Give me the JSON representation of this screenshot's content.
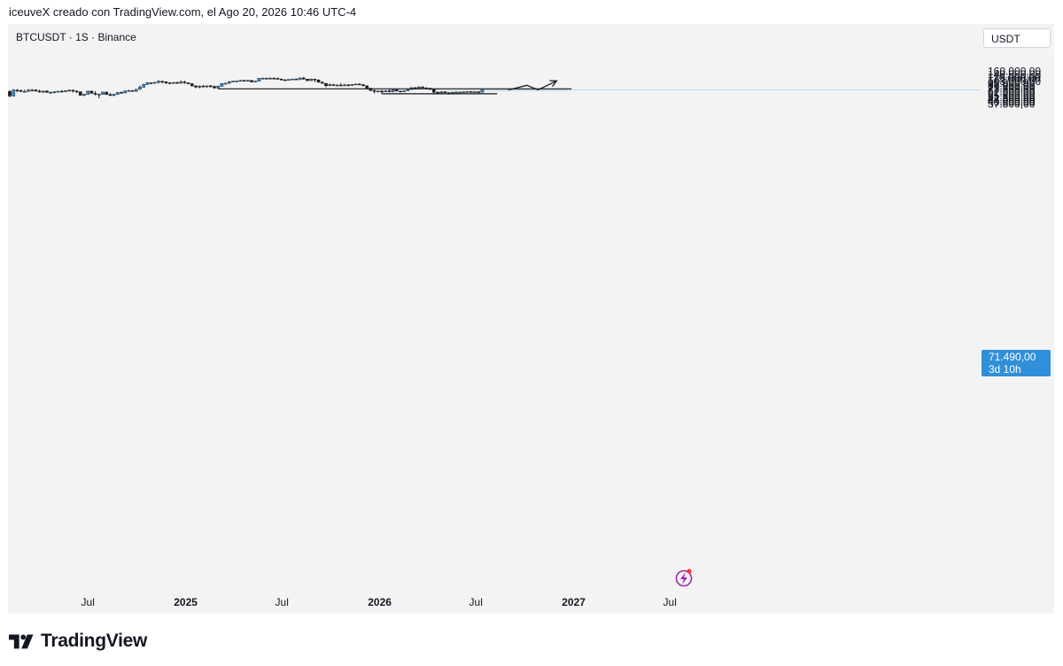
{
  "header": {
    "text": "iceuveX creado con TradingView.com, el Ago 20, 2026 10:46 UTC-4"
  },
  "symbol": {
    "label": "BTCUSDT · 1S · Binance"
  },
  "currency_badge": "USDT",
  "last_price": {
    "value": "71.490,00",
    "countdown": "3d 10h",
    "color": "#2f8fd8"
  },
  "footer": {
    "logo_text": "TradingView"
  },
  "colors": {
    "up": "#2f8fd8",
    "down": "#1e1e1e",
    "background": "#f3f3f3",
    "zone": "#e4e4e4"
  },
  "icons": {
    "lightning": "lightning-alert-icon"
  },
  "chart_data": {
    "type": "candlestick",
    "scale": "log",
    "price_ticks": [
      160000,
      140000,
      125000,
      115000,
      103000,
      95000,
      87000,
      79500,
      73500,
      67500,
      61500,
      55500,
      51500,
      47500,
      44000,
      40800,
      37800
    ],
    "price_tick_labels": [
      "160.000,00",
      "140.000,00",
      "125.000,00",
      "115.000,00",
      "103.000,00",
      "95.000,00",
      "87.000,00",
      "79.500,00",
      "73.500,00",
      "67.500,00",
      "61.500,00",
      "55.500,00",
      "51.500,00",
      "47.500,00",
      "44.000,00",
      "40.800,00",
      "37.800,00"
    ],
    "time_ticks": [
      {
        "label": "Jul",
        "date": "2024-07-01",
        "bold": false
      },
      {
        "label": "2025",
        "date": "2025-01-01",
        "bold": true
      },
      {
        "label": "Jul",
        "date": "2025-07-01",
        "bold": false
      },
      {
        "label": "2026",
        "date": "2026-01-01",
        "bold": true
      },
      {
        "label": "Jul",
        "date": "2026-07-01",
        "bold": false
      },
      {
        "label": "2027",
        "date": "2027-01-01",
        "bold": true
      },
      {
        "label": "Jul",
        "date": "2027-07-01",
        "bold": false
      }
    ],
    "candles": [
      [
        66500,
        70500,
        51000,
        54500
      ],
      [
        54500,
        73500,
        53000,
        70500
      ],
      [
        70500,
        73500,
        64000,
        69500
      ],
      [
        69500,
        72000,
        64000,
        66500
      ],
      [
        66500,
        72000,
        64000,
        66500
      ],
      [
        66500,
        73500,
        65000,
        70500
      ],
      [
        70500,
        74000,
        66000,
        71000
      ],
      [
        71000,
        72500,
        66000,
        67500
      ],
      [
        67500,
        71500,
        63000,
        64500
      ],
      [
        64500,
        69000,
        62000,
        67500
      ],
      [
        67500,
        70000,
        63000,
        63500
      ],
      [
        63500,
        66500,
        60000,
        64000
      ],
      [
        64000,
        67000,
        61000,
        65500
      ],
      [
        65500,
        68000,
        63500,
        67000
      ],
      [
        67000,
        70500,
        65000,
        66500
      ],
      [
        66500,
        69000,
        64000,
        69000
      ],
      [
        69000,
        72500,
        66500,
        70000
      ],
      [
        70000,
        72000,
        63000,
        67500
      ],
      [
        67500,
        69000,
        62000,
        65500
      ],
      [
        65500,
        67000,
        55500,
        56000
      ],
      [
        56000,
        60000,
        54000,
        58500
      ],
      [
        58500,
        68500,
        58000,
        67500
      ],
      [
        67500,
        68500,
        60500,
        61000
      ],
      [
        61000,
        67000,
        56000,
        58500
      ],
      [
        58500,
        60500,
        49000,
        58500
      ],
      [
        58500,
        65500,
        57500,
        64500
      ],
      [
        64500,
        66000,
        57000,
        58000
      ],
      [
        58000,
        62000,
        54000,
        55500
      ],
      [
        55500,
        60000,
        54000,
        58500
      ],
      [
        58500,
        64000,
        57500,
        63500
      ],
      [
        63500,
        66000,
        60000,
        62500
      ],
      [
        62500,
        68500,
        61000,
        68000
      ],
      [
        68000,
        71500,
        66000,
        69000
      ],
      [
        69000,
        70500,
        66500,
        67000
      ],
      [
        67000,
        73500,
        65500,
        73000
      ],
      [
        73000,
        86000,
        72000,
        80000
      ],
      [
        80000,
        93000,
        79000,
        90000
      ],
      [
        90000,
        100000,
        89000,
        97500
      ],
      [
        97500,
        98500,
        92000,
        95500
      ],
      [
        95500,
        101000,
        93000,
        99500
      ],
      [
        99500,
        108000,
        94000,
        104000
      ],
      [
        104000,
        106000,
        95000,
        102000
      ],
      [
        102000,
        103000,
        92000,
        97000
      ],
      [
        97000,
        100000,
        92000,
        95000
      ],
      [
        95000,
        101000,
        94000,
        98500
      ],
      [
        98500,
        102000,
        93500,
        95500
      ],
      [
        95500,
        108000,
        94000,
        101000
      ],
      [
        101000,
        106000,
        94000,
        97000
      ],
      [
        97000,
        99000,
        91500,
        93000
      ],
      [
        93000,
        97000,
        83000,
        84500
      ],
      [
        84500,
        88000,
        77000,
        80500
      ],
      [
        80500,
        87000,
        76000,
        84000
      ],
      [
        84000,
        88000,
        81000,
        82000
      ],
      [
        82000,
        86500,
        78000,
        85000
      ],
      [
        85000,
        88000,
        79000,
        82500
      ],
      [
        82500,
        86000,
        74500,
        77500
      ],
      [
        77500,
        86000,
        76000,
        83500
      ],
      [
        83500,
        95000,
        82500,
        94000
      ],
      [
        94000,
        98000,
        92000,
        95000
      ],
      [
        95000,
        104000,
        93500,
        102500
      ],
      [
        102500,
        106000,
        100000,
        104500
      ],
      [
        104500,
        107000,
        102000,
        105000
      ],
      [
        105000,
        110000,
        103000,
        108000
      ],
      [
        108000,
        111000,
        104000,
        106000
      ],
      [
        106000,
        110500,
        103000,
        108500
      ],
      [
        108500,
        109000,
        100000,
        101000
      ],
      [
        101000,
        106000,
        99500,
        104500
      ],
      [
        104500,
        120000,
        103500,
        118000
      ],
      [
        118000,
        123000,
        116000,
        119000
      ],
      [
        119000,
        122000,
        115000,
        117500
      ],
      [
        117500,
        124000,
        116000,
        119000
      ],
      [
        119000,
        124000,
        115000,
        118000
      ],
      [
        118000,
        122000,
        114000,
        114500
      ],
      [
        114500,
        118000,
        108000,
        111000
      ],
      [
        111000,
        114000,
        108500,
        109500
      ],
      [
        109500,
        114000,
        107500,
        112500
      ],
      [
        112500,
        117000,
        110000,
        115000
      ],
      [
        115000,
        117000,
        110000,
        111500
      ],
      [
        111500,
        123000,
        111000,
        120500
      ],
      [
        120500,
        126000,
        112000,
        114500
      ],
      [
        114500,
        116000,
        104000,
        107000
      ],
      [
        107000,
        117000,
        105500,
        114500
      ],
      [
        114500,
        116000,
        100000,
        110500
      ],
      [
        110500,
        112500,
        97500,
        99500
      ],
      [
        99500,
        104000,
        94000,
        95000
      ],
      [
        95000,
        96000,
        80000,
        85500
      ],
      [
        85500,
        94000,
        84000,
        89500
      ],
      [
        89500,
        93000,
        86000,
        87000
      ],
      [
        87000,
        91000,
        83500,
        88000
      ],
      [
        88000,
        95500,
        86500,
        87500
      ],
      [
        87500,
        92000,
        86000,
        88500
      ],
      [
        88500,
        92000,
        84000,
        86500
      ],
      [
        86500,
        91000,
        85000,
        90500
      ],
      [
        90500,
        94000,
        88000,
        92000
      ],
      [
        92000,
        95000,
        89000,
        89000
      ],
      [
        89000,
        93000,
        83000,
        85500
      ],
      [
        85500,
        86500,
        75000,
        76500
      ],
      [
        76500,
        78000,
        68000,
        69000
      ],
      [
        69000,
        73000,
        60500,
        67000
      ],
      [
        67000,
        69000,
        64000,
        67500
      ],
      [
        67500,
        70500,
        64500,
        66000
      ],
      [
        66000,
        70000,
        64500,
        68000
      ],
      [
        68000,
        73000,
        64000,
        65500
      ],
      [
        65500,
        72500,
        64000,
        71500
      ],
      [
        71500,
        73500,
        66000,
        67500
      ],
      [
        67500,
        68500,
        64000,
        66000
      ],
      [
        66000,
        69000,
        64500,
        68500
      ],
      [
        68500,
        74000,
        67500,
        72500
      ],
      [
        72500,
        80000,
        71500,
        78500
      ],
      [
        78500,
        80500,
        74500,
        76000
      ],
      [
        76000,
        83500,
        75000,
        81000
      ],
      [
        81000,
        83500,
        77000,
        77500
      ],
      [
        77500,
        80000,
        75500,
        76500
      ],
      [
        76500,
        78500,
        71500,
        72500
      ],
      [
        72500,
        74000,
        61000,
        64000
      ],
      [
        64000,
        66500,
        61000,
        62500
      ],
      [
        62500,
        66500,
        60000,
        65500
      ],
      [
        65500,
        67000,
        62000,
        63000
      ],
      [
        63000,
        64000,
        58000,
        59500
      ],
      [
        59500,
        65500,
        58000,
        64000
      ],
      [
        64000,
        66000,
        62500,
        64500
      ],
      [
        64500,
        66000,
        62500,
        64500
      ],
      [
        64500,
        66500,
        63500,
        65000
      ],
      [
        65000,
        67000,
        63500,
        66000
      ],
      [
        66000,
        67000,
        63500,
        64500
      ],
      [
        64500,
        66500,
        63500,
        65500
      ],
      [
        65500,
        67000,
        63500,
        64000
      ],
      [
        64000,
        72000,
        64000,
        71490
      ]
    ],
    "horizontal_lines": [
      {
        "price": 74500,
        "from": "2025-03-03",
        "to": "2026-12-28"
      },
      {
        "price": 60000,
        "from": "2026-01-05",
        "to": "2026-08-10"
      }
    ],
    "range_box": {
      "from": "2026-05-04",
      "to": "2026-12-21",
      "low": 66000,
      "high": 71800
    },
    "projection_path": [
      {
        "date": "2026-08-31",
        "price": 70800
      },
      {
        "date": "2026-10-05",
        "price": 87000
      },
      {
        "date": "2026-10-26",
        "price": 71300
      },
      {
        "date": "2026-11-30",
        "price": 106000
      }
    ]
  }
}
